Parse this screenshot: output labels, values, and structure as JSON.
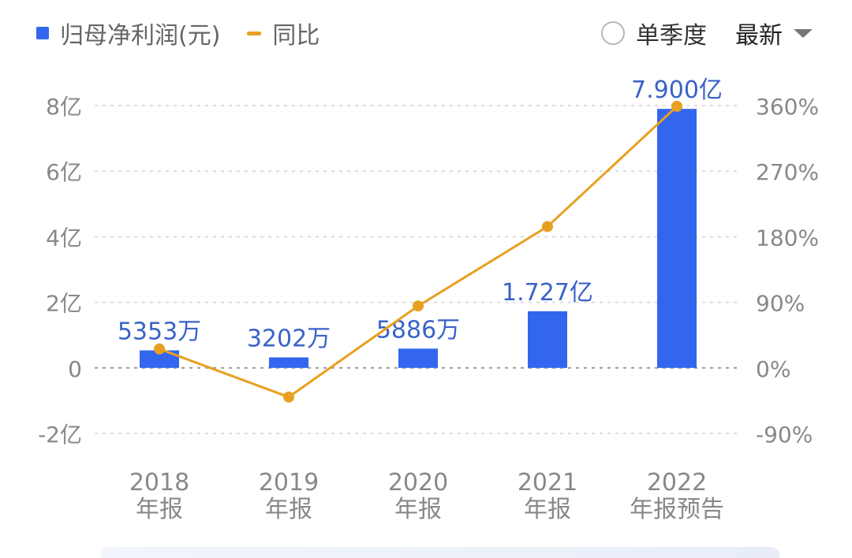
{
  "legend": {
    "profit_label": "归母净利润(元)",
    "yoy_label": "同比"
  },
  "controls": {
    "quarter_label": "单季度",
    "period_selected": "最新"
  },
  "colors": {
    "bar": "#3366ee",
    "line": "#e8a020",
    "label": "#3a62c8",
    "axis_text": "#888888",
    "grid": "#dddddd"
  },
  "icons": [
    "radio-unchecked-icon",
    "caret-down-icon"
  ],
  "chart_data": {
    "type": "bar+line",
    "categories": [
      [
        "2018",
        "年报"
      ],
      [
        "2019",
        "年报"
      ],
      [
        "2020",
        "年报"
      ],
      [
        "2021",
        "年报"
      ],
      [
        "2022",
        "年报预告"
      ]
    ],
    "series": [
      {
        "name": "归母净利润(元)",
        "type": "bar",
        "axis": "left",
        "values": [
          0.5353,
          0.3202,
          0.5886,
          1.727,
          7.9
        ],
        "data_labels": [
          "5353万",
          "3202万",
          "5886万",
          "1.727亿",
          "7.900亿"
        ]
      },
      {
        "name": "同比",
        "type": "line",
        "axis": "right",
        "values": [
          26,
          -40,
          85,
          194,
          359
        ]
      }
    ],
    "y_left": {
      "range": [
        -2,
        8
      ],
      "ticks": [
        8,
        6,
        4,
        2,
        0,
        -2
      ],
      "tick_labels": [
        "8亿",
        "6亿",
        "4亿",
        "2亿",
        "0",
        "-2亿"
      ]
    },
    "y_right": {
      "range": [
        -90,
        360
      ],
      "ticks": [
        360,
        270,
        180,
        90,
        0,
        -90
      ],
      "tick_labels": [
        "360%",
        "270%",
        "180%",
        "90%",
        "0%",
        "-90%"
      ]
    },
    "grid": true,
    "legend_position": "top-left"
  }
}
